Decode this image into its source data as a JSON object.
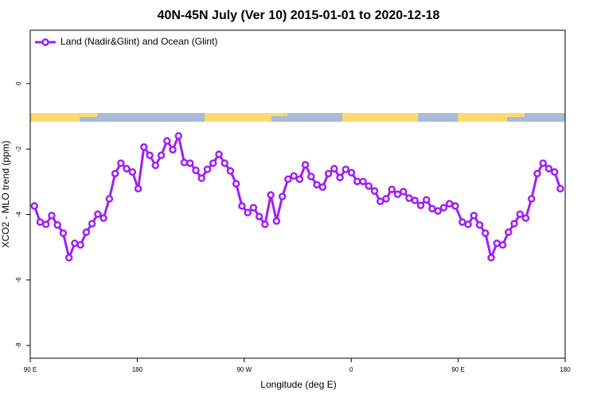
{
  "chart_data": {
    "type": "line",
    "title": "40N-45N July (Ver 10)   2015-01-01 to 2020-12-18",
    "x_label": "Longitude (deg E)",
    "y_label": "XCO2 - MLO trend (ppm)",
    "xlim": [
      90,
      540
    ],
    "xticks": [
      {
        "value": 90,
        "label": "90 E"
      },
      180,
      {
        "value": 270,
        "label": "90 W"
      },
      {
        "value": 360,
        "label": "0"
      },
      {
        "value": 450,
        "label": "90 E"
      },
      {
        "value": 540,
        "label": "180"
      }
    ],
    "ylim": [
      -8.39,
      1.63
    ],
    "yticks": [
      0,
      -2,
      -4,
      -6,
      -8
    ],
    "legend": "top-left",
    "x": [
      93.5,
      98.35,
      103.2,
      108.05,
      112.9,
      117.75,
      122.6,
      127.45,
      132.3,
      137.15,
      142,
      146.85,
      151.7,
      156.55,
      161.4,
      166.25,
      171.1,
      175.95,
      180.8,
      185.65,
      190.5,
      195.35,
      200.2,
      205.05,
      209.9,
      214.75,
      219.6,
      224.45,
      229.3,
      234.15,
      239,
      243.85,
      248.7,
      253.55,
      258.4,
      263.25,
      268.1,
      272.95,
      277.8,
      282.65,
      287.5,
      292.35,
      297.2,
      302.05,
      306.9,
      311.75,
      316.6,
      321.45,
      326.3,
      331.15,
      336,
      340.85,
      345.7,
      350.55,
      355.4,
      360.25,
      365.1,
      369.95,
      374.8,
      379.65,
      384.5,
      389.35,
      394.2,
      399.05,
      403.9,
      408.75,
      413.6,
      418.45,
      423.3,
      428.15,
      433,
      437.85,
      442.7,
      447.55,
      453.5,
      458.35,
      463.2,
      468.05,
      472.9,
      477.75,
      482.6,
      487.45,
      492.3,
      497.15,
      502,
      506.85,
      511.7,
      516.55,
      521.4,
      526.25,
      531.1,
      535.95
    ],
    "series": [
      {
        "name": "Land (Nadir&Glint) and Ocean (Glint)",
        "color": "#a020f0",
        "values": [
          -3.74,
          -4.23,
          -4.3,
          -4.03,
          -4.32,
          -4.57,
          -5.32,
          -4.88,
          -4.93,
          -4.54,
          -4.28,
          -3.99,
          -4.11,
          -3.52,
          -2.75,
          -2.43,
          -2.6,
          -2.7,
          -3.21,
          -1.94,
          -2.19,
          -2.5,
          -2.19,
          -1.75,
          -2.02,
          -1.6,
          -2.41,
          -2.43,
          -2.65,
          -2.89,
          -2.62,
          -2.43,
          -2.16,
          -2.43,
          -2.67,
          -3.06,
          -3.74,
          -3.94,
          -3.79,
          -4.06,
          -4.3,
          -3.4,
          -4.2,
          -3.45,
          -2.92,
          -2.82,
          -2.92,
          -2.48,
          -2.84,
          -3.09,
          -3.16,
          -2.75,
          -2.6,
          -2.87,
          -2.62,
          -2.72,
          -2.99,
          -2.99,
          -3.13,
          -3.28,
          -3.6,
          -3.52,
          -3.23,
          -3.38,
          -3.3,
          -3.5,
          -3.57,
          -3.72,
          -3.55,
          -3.82,
          -3.89,
          -3.79,
          -3.67,
          -3.74,
          -4.23,
          -4.3,
          -4.03,
          -4.32,
          -4.57,
          -5.32,
          -4.88,
          -4.93,
          -4.54,
          -4.28,
          -3.99,
          -4.11,
          -3.52,
          -2.75,
          -2.43,
          -2.6,
          -2.7,
          -3.21
        ]
      }
    ]
  }
}
